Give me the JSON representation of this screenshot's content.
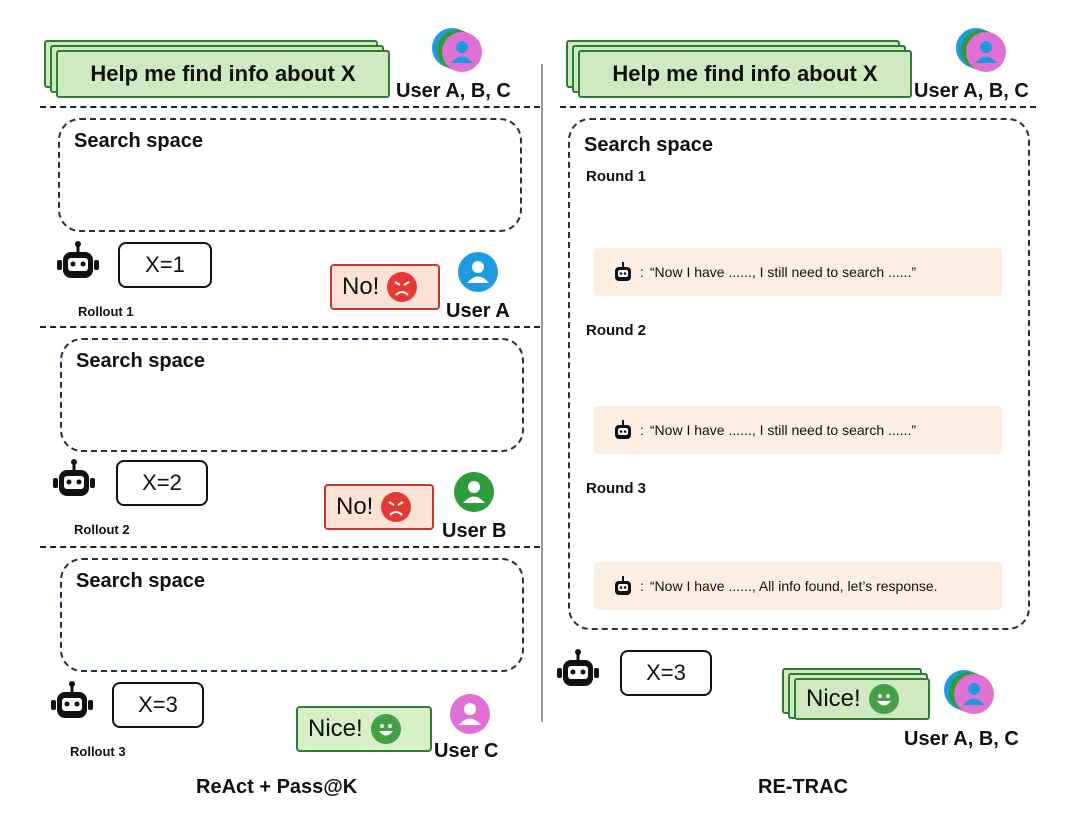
{
  "left": {
    "query": "Help me find info about X",
    "users": "User A, B, C",
    "panels": [
      {
        "title": "Search space",
        "answer": "X=1",
        "rollout": "Rollout 1",
        "reply": "No!",
        "user": "User A"
      },
      {
        "title": "Search space",
        "answer": "X=2",
        "rollout": "Rollout 2",
        "reply": "No!",
        "user": "User B"
      },
      {
        "title": "Search space",
        "answer": "X=3",
        "rollout": "Rollout 3",
        "reply": "Nice!",
        "user": "User C"
      }
    ],
    "caption": "ReAct + Pass@K"
  },
  "right": {
    "query": "Help me find info about X",
    "users": "User A, B, C",
    "title": "Search space",
    "rounds": [
      {
        "label": "Round 1",
        "thought_prefix": ":",
        "thought": "“Now I have ......,  I still need to search ......”"
      },
      {
        "label": "Round 2",
        "thought_prefix": ":",
        "thought": "“Now I have ......,  I still need to search ......”"
      },
      {
        "label": "Round 3",
        "thought_prefix": ":",
        "thought": "“Now I have ......,  All info found, let’s response."
      }
    ],
    "answer": "X=3",
    "reply": "Nice!",
    "final_users": "User A, B, C",
    "caption": "RE-TRAC"
  },
  "colors": {
    "blue_path": "#1f6fa5",
    "blue_node": "#5ec2ee",
    "green_path": "#2e7d32",
    "green_node": "#c9eeb8",
    "purple_path": "#7b2d82",
    "purple_node": "#f2b6ea",
    "gray": "#d6d6d6",
    "user_a": "#1e9be0",
    "user_b": "#2e9b3a",
    "user_c": "#e070d4"
  },
  "icons": [
    "robot-icon",
    "angry-face-icon",
    "happy-face-icon",
    "user-icon",
    "star-icon"
  ]
}
